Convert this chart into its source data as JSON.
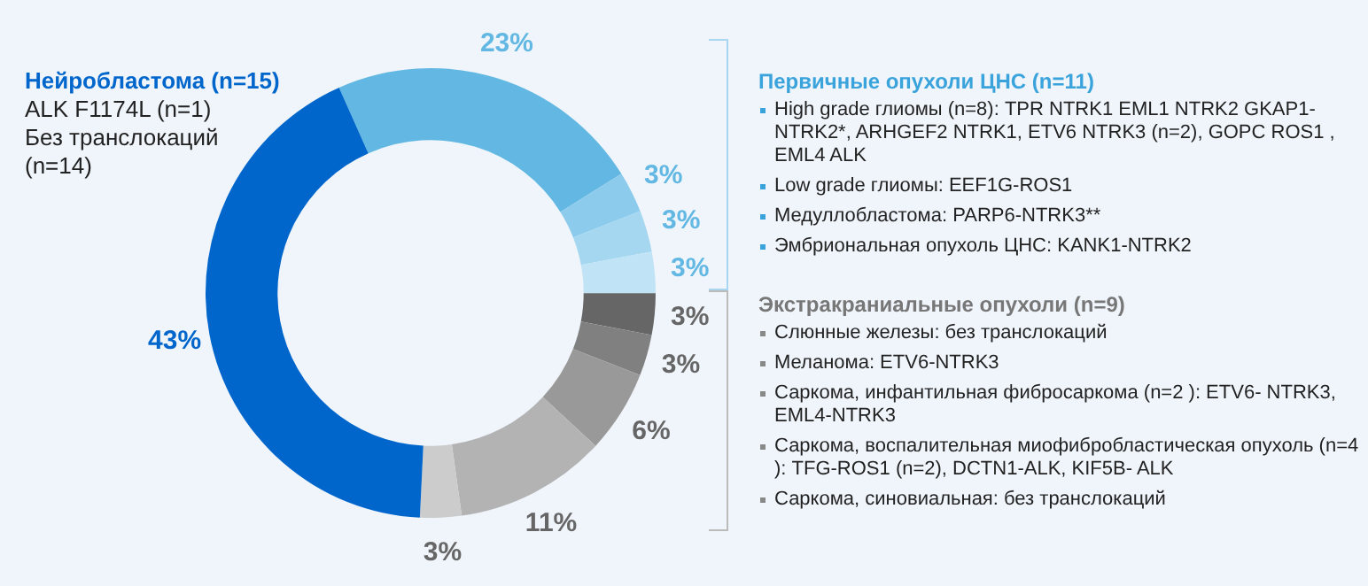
{
  "chart_data": {
    "type": "donut",
    "categories": [
      null,
      null,
      null,
      null,
      null,
      null,
      null,
      null,
      null,
      null
    ],
    "values": [
      23,
      3,
      3,
      3,
      3,
      3,
      6,
      11,
      3,
      43
    ],
    "colors": [
      "#62b8e3",
      "#8ccbeb",
      "#a5d7f0",
      "#c0e4f5",
      "#666666",
      "#808080",
      "#999999",
      "#b3b3b3",
      "#cccccc",
      "#0066cc"
    ],
    "value_labels": [
      "23%",
      "3%",
      "3%",
      "3%",
      "3%",
      "3%",
      "6%",
      "11%",
      "3%",
      "43%"
    ],
    "legend": false,
    "annotations": [
      "Нейробластома (n=15)",
      "ALK F1174L (n=1)",
      "Без транслокаций (n=14)",
      "Первичные опухоли ЦНС (n=11)",
      "High grade глиомы (n=8): TPR NTRK1 EML1 NTRK2 GKAP1-NTRK2*, ARHGEF2 NTRK1, ETV6 NTRK3 (n=2), GOPC ROS1 , EML4 ALK",
      "Low grade глиомы: EEF1G-ROS1",
      "Медуллобластома: PARP6-NTRK3**",
      "Эмбриональная опухоль ЦНС: KANK1-NTRK2",
      "Экстракраниальные опухоли (n=9)",
      "Слюнные железы: без транслокаций",
      "Меланома: ETV6-NTRK3",
      "Саркома, инфантильная фибросаркома (n=2 ): ETV6- NTRK3, EML4-NTRK3",
      "Саркома, воспалительная миофибробластическая опухоль (n=4 ): TFG-ROS1 (n=2), DCTN1-ALK, KIF5B- ALK",
      "Саркома, синовиальная: без транслокаций"
    ]
  }
}
